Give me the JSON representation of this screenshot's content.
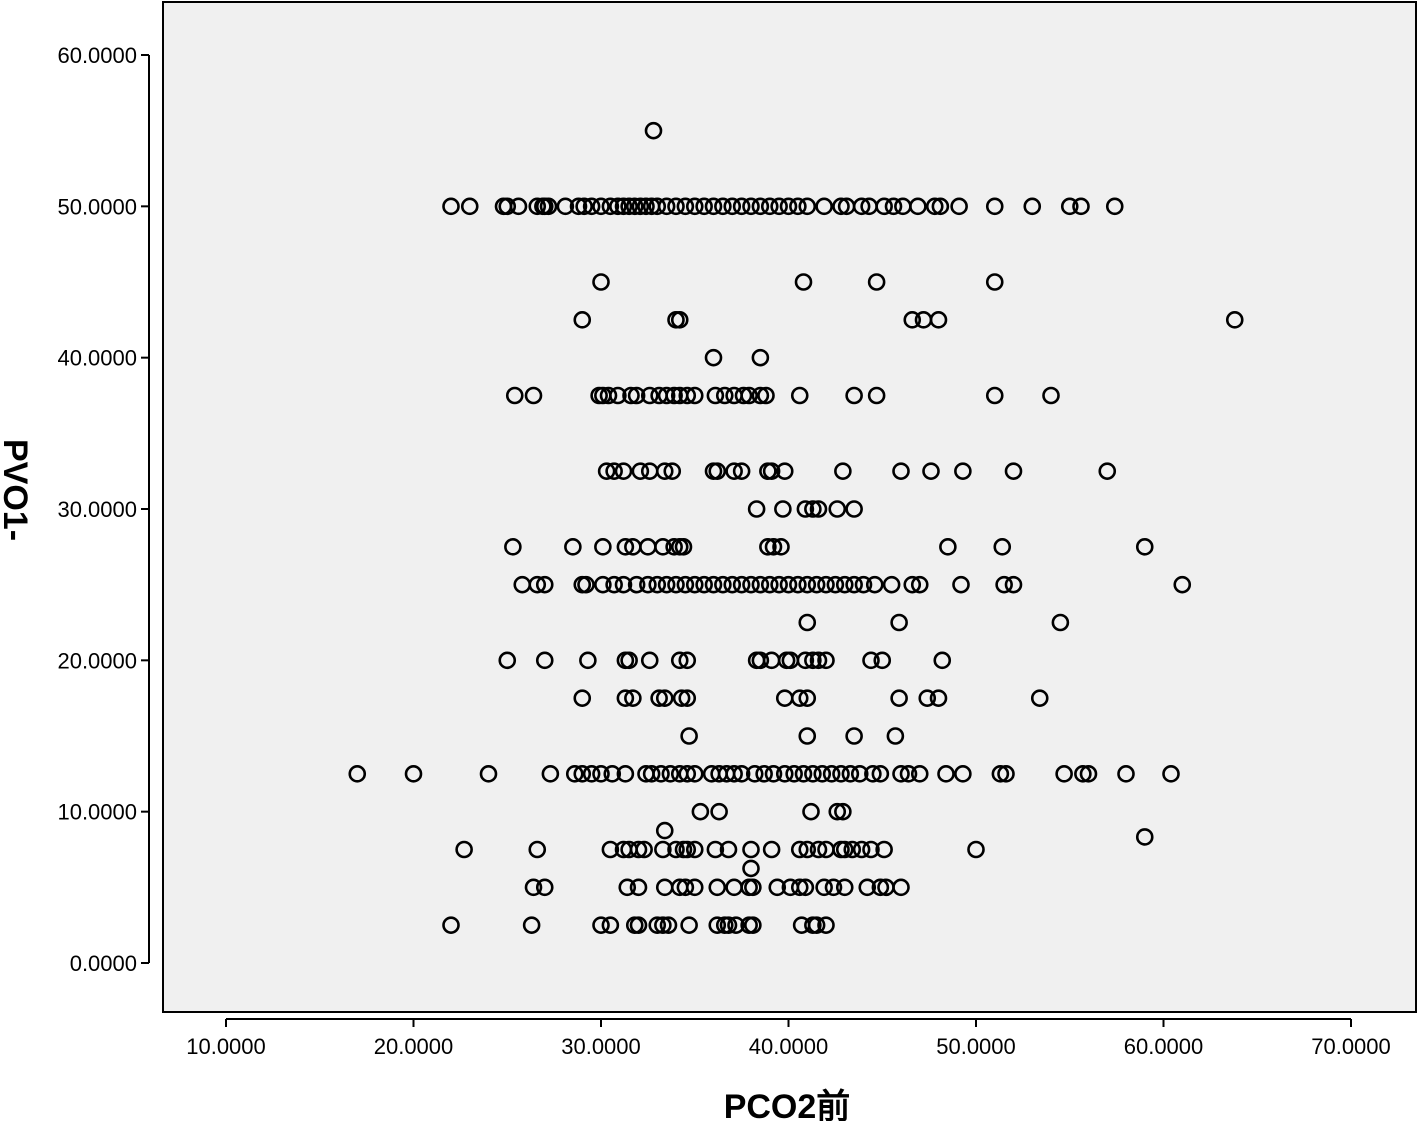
{
  "chart_data": {
    "type": "scatter",
    "title": "",
    "xlabel": "PCO2前",
    "ylabel": "PVO1-",
    "xlim": [
      6.5,
      73.5
    ],
    "ylim": [
      -3.5,
      63.5
    ],
    "x_ticks": [
      10,
      20,
      30,
      40,
      50,
      60,
      70
    ],
    "y_ticks": [
      0,
      10,
      20,
      30,
      40,
      50,
      60
    ],
    "x_tick_labels": [
      "10.0000",
      "20.0000",
      "30.0000",
      "40.0000",
      "50.0000",
      "60.0000",
      "70.0000"
    ],
    "y_tick_labels": [
      "0.0000",
      "10.0000",
      "20.0000",
      "30.0000",
      "40.0000",
      "50.0000",
      "60.0000"
    ],
    "grid": false,
    "legend": "none",
    "colors": {
      "plot_background": "#f0f0f0",
      "marker_stroke": "#000000",
      "axis": "#000000"
    },
    "marker": "open-circle",
    "points": [
      [
        32.8,
        55.0
      ],
      [
        22.0,
        50.0
      ],
      [
        23.0,
        50.0
      ],
      [
        24.8,
        50.0
      ],
      [
        25.0,
        50.0
      ],
      [
        25.6,
        50.0
      ],
      [
        26.6,
        50.0
      ],
      [
        26.9,
        50.0
      ],
      [
        27.0,
        50.0
      ],
      [
        27.2,
        50.0
      ],
      [
        28.1,
        50.0
      ],
      [
        28.8,
        50.0
      ],
      [
        29.1,
        50.0
      ],
      [
        29.5,
        50.0
      ],
      [
        30.0,
        50.0
      ],
      [
        30.5,
        50.0
      ],
      [
        30.9,
        50.0
      ],
      [
        31.2,
        50.0
      ],
      [
        31.5,
        50.0
      ],
      [
        31.8,
        50.0
      ],
      [
        32.1,
        50.0
      ],
      [
        32.4,
        50.0
      ],
      [
        32.7,
        50.0
      ],
      [
        33.0,
        50.0
      ],
      [
        33.5,
        50.0
      ],
      [
        34.0,
        50.0
      ],
      [
        34.5,
        50.0
      ],
      [
        35.0,
        50.0
      ],
      [
        35.5,
        50.0
      ],
      [
        36.0,
        50.0
      ],
      [
        36.5,
        50.0
      ],
      [
        37.0,
        50.0
      ],
      [
        37.5,
        50.0
      ],
      [
        38.0,
        50.0
      ],
      [
        38.5,
        50.0
      ],
      [
        39.0,
        50.0
      ],
      [
        39.5,
        50.0
      ],
      [
        40.0,
        50.0
      ],
      [
        40.5,
        50.0
      ],
      [
        41.0,
        50.0
      ],
      [
        41.9,
        50.0
      ],
      [
        42.8,
        50.0
      ],
      [
        43.1,
        50.0
      ],
      [
        43.9,
        50.0
      ],
      [
        44.3,
        50.0
      ],
      [
        45.1,
        50.0
      ],
      [
        45.6,
        50.0
      ],
      [
        46.1,
        50.0
      ],
      [
        46.9,
        50.0
      ],
      [
        47.8,
        50.0
      ],
      [
        48.1,
        50.0
      ],
      [
        49.1,
        50.0
      ],
      [
        51.0,
        50.0
      ],
      [
        53.0,
        50.0
      ],
      [
        55.0,
        50.0
      ],
      [
        55.6,
        50.0
      ],
      [
        57.4,
        50.0
      ],
      [
        30.0,
        45.0
      ],
      [
        40.8,
        45.0
      ],
      [
        44.7,
        45.0
      ],
      [
        51.0,
        45.0
      ],
      [
        29.0,
        42.5
      ],
      [
        34.0,
        42.5
      ],
      [
        34.2,
        42.5
      ],
      [
        46.6,
        42.5
      ],
      [
        47.2,
        42.5
      ],
      [
        48.0,
        42.5
      ],
      [
        63.8,
        42.5
      ],
      [
        36.0,
        40.0
      ],
      [
        38.5,
        40.0
      ],
      [
        25.4,
        37.5
      ],
      [
        26.4,
        37.5
      ],
      [
        29.9,
        37.5
      ],
      [
        30.1,
        37.5
      ],
      [
        30.4,
        37.5
      ],
      [
        30.9,
        37.5
      ],
      [
        31.6,
        37.5
      ],
      [
        31.9,
        37.5
      ],
      [
        32.6,
        37.5
      ],
      [
        33.1,
        37.5
      ],
      [
        33.5,
        37.5
      ],
      [
        33.9,
        37.5
      ],
      [
        34.2,
        37.5
      ],
      [
        34.6,
        37.5
      ],
      [
        35.0,
        37.5
      ],
      [
        36.1,
        37.5
      ],
      [
        36.6,
        37.5
      ],
      [
        37.1,
        37.5
      ],
      [
        37.6,
        37.5
      ],
      [
        37.9,
        37.5
      ],
      [
        38.5,
        37.5
      ],
      [
        38.8,
        37.5
      ],
      [
        40.6,
        37.5
      ],
      [
        43.5,
        37.5
      ],
      [
        44.7,
        37.5
      ],
      [
        51.0,
        37.5
      ],
      [
        54.0,
        37.5
      ],
      [
        30.3,
        32.5
      ],
      [
        30.7,
        32.5
      ],
      [
        31.2,
        32.5
      ],
      [
        32.1,
        32.5
      ],
      [
        32.6,
        32.5
      ],
      [
        33.4,
        32.5
      ],
      [
        33.8,
        32.5
      ],
      [
        36.0,
        32.5
      ],
      [
        36.2,
        32.5
      ],
      [
        37.1,
        32.5
      ],
      [
        37.5,
        32.5
      ],
      [
        38.9,
        32.5
      ],
      [
        39.1,
        32.5
      ],
      [
        39.8,
        32.5
      ],
      [
        42.9,
        32.5
      ],
      [
        46.0,
        32.5
      ],
      [
        47.6,
        32.5
      ],
      [
        49.3,
        32.5
      ],
      [
        52.0,
        32.5
      ],
      [
        57.0,
        32.5
      ],
      [
        38.3,
        30.0
      ],
      [
        39.7,
        30.0
      ],
      [
        40.9,
        30.0
      ],
      [
        41.3,
        30.0
      ],
      [
        41.6,
        30.0
      ],
      [
        42.6,
        30.0
      ],
      [
        43.5,
        30.0
      ],
      [
        25.3,
        27.5
      ],
      [
        28.5,
        27.5
      ],
      [
        30.1,
        27.5
      ],
      [
        31.3,
        27.5
      ],
      [
        31.7,
        27.5
      ],
      [
        32.5,
        27.5
      ],
      [
        33.3,
        27.5
      ],
      [
        33.9,
        27.5
      ],
      [
        34.2,
        27.5
      ],
      [
        34.4,
        27.5
      ],
      [
        38.9,
        27.5
      ],
      [
        39.2,
        27.5
      ],
      [
        39.6,
        27.5
      ],
      [
        48.5,
        27.5
      ],
      [
        51.4,
        27.5
      ],
      [
        59.0,
        27.5
      ],
      [
        25.8,
        25.0
      ],
      [
        26.6,
        25.0
      ],
      [
        27.0,
        25.0
      ],
      [
        29.0,
        25.0
      ],
      [
        29.2,
        25.0
      ],
      [
        30.1,
        25.0
      ],
      [
        30.7,
        25.0
      ],
      [
        31.2,
        25.0
      ],
      [
        31.9,
        25.0
      ],
      [
        32.5,
        25.0
      ],
      [
        33.0,
        25.0
      ],
      [
        33.5,
        25.0
      ],
      [
        34.0,
        25.0
      ],
      [
        34.5,
        25.0
      ],
      [
        35.0,
        25.0
      ],
      [
        35.5,
        25.0
      ],
      [
        36.0,
        25.0
      ],
      [
        36.5,
        25.0
      ],
      [
        37.0,
        25.0
      ],
      [
        37.5,
        25.0
      ],
      [
        38.0,
        25.0
      ],
      [
        38.5,
        25.0
      ],
      [
        39.0,
        25.0
      ],
      [
        39.5,
        25.0
      ],
      [
        40.0,
        25.0
      ],
      [
        40.5,
        25.0
      ],
      [
        41.0,
        25.0
      ],
      [
        41.5,
        25.0
      ],
      [
        42.0,
        25.0
      ],
      [
        42.5,
        25.0
      ],
      [
        43.0,
        25.0
      ],
      [
        43.5,
        25.0
      ],
      [
        44.0,
        25.0
      ],
      [
        44.6,
        25.0
      ],
      [
        45.5,
        25.0
      ],
      [
        46.6,
        25.0
      ],
      [
        47.0,
        25.0
      ],
      [
        49.2,
        25.0
      ],
      [
        51.5,
        25.0
      ],
      [
        52.0,
        25.0
      ],
      [
        61.0,
        25.0
      ],
      [
        41.0,
        22.5
      ],
      [
        45.9,
        22.5
      ],
      [
        54.5,
        22.5
      ],
      [
        25.0,
        20.0
      ],
      [
        27.0,
        20.0
      ],
      [
        29.3,
        20.0
      ],
      [
        31.3,
        20.0
      ],
      [
        31.5,
        20.0
      ],
      [
        32.6,
        20.0
      ],
      [
        34.2,
        20.0
      ],
      [
        34.6,
        20.0
      ],
      [
        38.3,
        20.0
      ],
      [
        38.5,
        20.0
      ],
      [
        39.1,
        20.0
      ],
      [
        39.9,
        20.0
      ],
      [
        40.1,
        20.0
      ],
      [
        40.9,
        20.0
      ],
      [
        41.3,
        20.0
      ],
      [
        41.6,
        20.0
      ],
      [
        42.0,
        20.0
      ],
      [
        44.4,
        20.0
      ],
      [
        45.0,
        20.0
      ],
      [
        48.2,
        20.0
      ],
      [
        29.0,
        17.5
      ],
      [
        31.3,
        17.5
      ],
      [
        31.7,
        17.5
      ],
      [
        33.1,
        17.5
      ],
      [
        33.4,
        17.5
      ],
      [
        34.3,
        17.5
      ],
      [
        34.6,
        17.5
      ],
      [
        39.8,
        17.5
      ],
      [
        40.6,
        17.5
      ],
      [
        41.0,
        17.5
      ],
      [
        45.9,
        17.5
      ],
      [
        47.4,
        17.5
      ],
      [
        48.0,
        17.5
      ],
      [
        53.4,
        17.5
      ],
      [
        34.7,
        15.0
      ],
      [
        41.0,
        15.0
      ],
      [
        43.5,
        15.0
      ],
      [
        45.7,
        15.0
      ],
      [
        17.0,
        12.5
      ],
      [
        20.0,
        12.5
      ],
      [
        24.0,
        12.5
      ],
      [
        27.3,
        12.5
      ],
      [
        28.6,
        12.5
      ],
      [
        29.0,
        12.5
      ],
      [
        29.5,
        12.5
      ],
      [
        30.0,
        12.5
      ],
      [
        30.6,
        12.5
      ],
      [
        31.3,
        12.5
      ],
      [
        32.4,
        12.5
      ],
      [
        32.7,
        12.5
      ],
      [
        33.2,
        12.5
      ],
      [
        33.7,
        12.5
      ],
      [
        34.2,
        12.5
      ],
      [
        34.6,
        12.5
      ],
      [
        35.0,
        12.5
      ],
      [
        35.9,
        12.5
      ],
      [
        36.3,
        12.5
      ],
      [
        36.7,
        12.5
      ],
      [
        37.1,
        12.5
      ],
      [
        37.5,
        12.5
      ],
      [
        38.2,
        12.5
      ],
      [
        38.7,
        12.5
      ],
      [
        39.2,
        12.5
      ],
      [
        39.8,
        12.5
      ],
      [
        40.3,
        12.5
      ],
      [
        40.8,
        12.5
      ],
      [
        41.3,
        12.5
      ],
      [
        41.8,
        12.5
      ],
      [
        42.3,
        12.5
      ],
      [
        42.8,
        12.5
      ],
      [
        43.3,
        12.5
      ],
      [
        43.8,
        12.5
      ],
      [
        44.5,
        12.5
      ],
      [
        44.9,
        12.5
      ],
      [
        46.0,
        12.5
      ],
      [
        46.4,
        12.5
      ],
      [
        47.0,
        12.5
      ],
      [
        48.4,
        12.5
      ],
      [
        49.3,
        12.5
      ],
      [
        51.3,
        12.5
      ],
      [
        51.6,
        12.5
      ],
      [
        54.7,
        12.5
      ],
      [
        55.7,
        12.5
      ],
      [
        56.0,
        12.5
      ],
      [
        58.0,
        12.5
      ],
      [
        60.4,
        12.5
      ],
      [
        35.3,
        10.0
      ],
      [
        36.3,
        10.0
      ],
      [
        41.2,
        10.0
      ],
      [
        42.6,
        10.0
      ],
      [
        42.9,
        10.0
      ],
      [
        33.4,
        8.75
      ],
      [
        59.0,
        8.33
      ],
      [
        22.7,
        7.5
      ],
      [
        26.6,
        7.5
      ],
      [
        30.5,
        7.5
      ],
      [
        31.2,
        7.5
      ],
      [
        31.5,
        7.5
      ],
      [
        32.0,
        7.5
      ],
      [
        32.3,
        7.5
      ],
      [
        33.3,
        7.5
      ],
      [
        34.0,
        7.5
      ],
      [
        34.4,
        7.5
      ],
      [
        34.6,
        7.5
      ],
      [
        35.0,
        7.5
      ],
      [
        36.1,
        7.5
      ],
      [
        36.8,
        7.5
      ],
      [
        38.0,
        7.5
      ],
      [
        39.1,
        7.5
      ],
      [
        40.6,
        7.5
      ],
      [
        41.0,
        7.5
      ],
      [
        41.6,
        7.5
      ],
      [
        42.0,
        7.5
      ],
      [
        42.8,
        7.5
      ],
      [
        43.0,
        7.5
      ],
      [
        43.4,
        7.5
      ],
      [
        43.9,
        7.5
      ],
      [
        44.4,
        7.5
      ],
      [
        45.1,
        7.5
      ],
      [
        50.0,
        7.5
      ],
      [
        38.0,
        6.25
      ],
      [
        26.4,
        5.0
      ],
      [
        27.0,
        5.0
      ],
      [
        31.4,
        5.0
      ],
      [
        32.0,
        5.0
      ],
      [
        33.4,
        5.0
      ],
      [
        34.2,
        5.0
      ],
      [
        34.5,
        5.0
      ],
      [
        35.0,
        5.0
      ],
      [
        36.2,
        5.0
      ],
      [
        37.1,
        5.0
      ],
      [
        37.9,
        5.0
      ],
      [
        38.1,
        5.0
      ],
      [
        39.4,
        5.0
      ],
      [
        40.1,
        5.0
      ],
      [
        40.6,
        5.0
      ],
      [
        40.9,
        5.0
      ],
      [
        41.9,
        5.0
      ],
      [
        42.4,
        5.0
      ],
      [
        43.0,
        5.0
      ],
      [
        44.2,
        5.0
      ],
      [
        44.9,
        5.0
      ],
      [
        45.2,
        5.0
      ],
      [
        46.0,
        5.0
      ],
      [
        22.0,
        2.5
      ],
      [
        26.3,
        2.5
      ],
      [
        30.0,
        2.5
      ],
      [
        30.5,
        2.5
      ],
      [
        31.8,
        2.5
      ],
      [
        32.0,
        2.5
      ],
      [
        33.0,
        2.5
      ],
      [
        33.3,
        2.5
      ],
      [
        33.6,
        2.5
      ],
      [
        34.7,
        2.5
      ],
      [
        36.2,
        2.5
      ],
      [
        36.6,
        2.5
      ],
      [
        36.8,
        2.5
      ],
      [
        37.2,
        2.5
      ],
      [
        37.9,
        2.5
      ],
      [
        38.1,
        2.5
      ],
      [
        40.7,
        2.5
      ],
      [
        41.3,
        2.5
      ],
      [
        41.5,
        2.5
      ],
      [
        42.0,
        2.5
      ]
    ]
  }
}
